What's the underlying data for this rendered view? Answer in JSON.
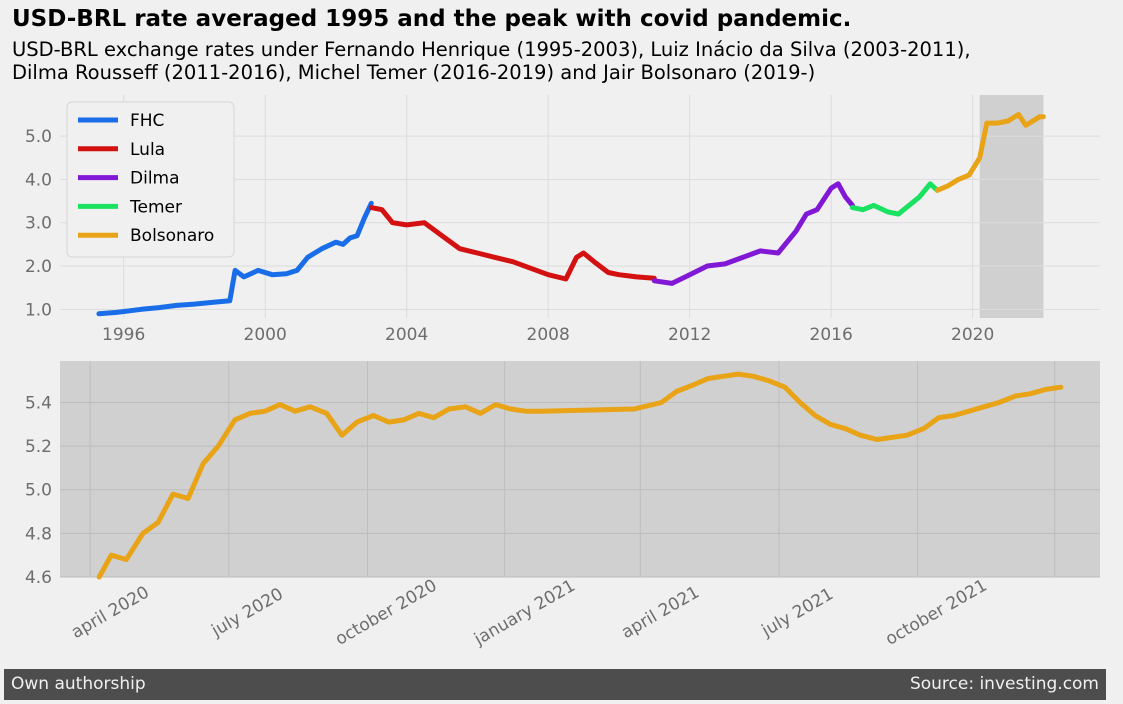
{
  "title": "USD-BRL rate averaged 1995 and the peak with covid pandemic.",
  "subtitle": "USD-BRL exchange rates under Fernando Henrique (1995-2003), Luiz Inácio da Silva (2003-2011),\nDilma Rousseff (2011-2016), Michel Temer (2016-2019) and Jair Bolsonaro (2019-)",
  "footer": {
    "left": "Own authorship",
    "right": "Source: investing.com"
  },
  "colors": {
    "FHC": "#1a6de8",
    "Lula": "#d41111",
    "Dilma": "#8118d6",
    "Temer": "#18e25f",
    "Bolsonaro": "#e8a317",
    "background": "#f0f0f0",
    "covid_band": "#d0d0d0",
    "grid": "#dcdcdc",
    "footer_bg": "#4d4d4d"
  },
  "chart_data": [
    {
      "type": "line",
      "xlabel": "",
      "ylabel": "",
      "x_ticks": [
        "1996",
        "2000",
        "2004",
        "2008",
        "2012",
        "2016",
        "2020"
      ],
      "y_ticks": [
        "1.0",
        "2.0",
        "3.0",
        "4.0",
        "5.0"
      ],
      "xlim": [
        1994.2,
        2023.6
      ],
      "ylim": [
        0.8,
        5.95
      ],
      "grid": true,
      "legend_position": "top-left",
      "shaded_region": {
        "x": [
          2020.2,
          2022.0
        ],
        "label": ""
      },
      "series": [
        {
          "name": "FHC",
          "x": [
            1995.3,
            1995.8,
            1996.5,
            1997.0,
            1997.5,
            1998.0,
            1998.5,
            1999.0,
            1999.15,
            1999.4,
            1999.8,
            2000.2,
            2000.6,
            2000.9,
            2001.2,
            2001.6,
            2002.0,
            2002.2,
            2002.4,
            2002.6,
            2002.8,
            2003.0
          ],
          "y": [
            0.9,
            0.93,
            1.0,
            1.04,
            1.09,
            1.12,
            1.16,
            1.2,
            1.9,
            1.75,
            1.9,
            1.8,
            1.82,
            1.9,
            2.2,
            2.4,
            2.55,
            2.5,
            2.65,
            2.7,
            3.1,
            3.45
          ]
        },
        {
          "name": "Lula",
          "x": [
            2003.0,
            2003.3,
            2003.6,
            2004.0,
            2004.5,
            2005.0,
            2005.5,
            2006.0,
            2006.5,
            2007.0,
            2007.5,
            2008.0,
            2008.5,
            2008.8,
            2009.0,
            2009.3,
            2009.7,
            2010.0,
            2010.5,
            2011.0
          ],
          "y": [
            3.35,
            3.3,
            3.0,
            2.95,
            3.0,
            2.7,
            2.4,
            2.3,
            2.2,
            2.1,
            1.95,
            1.8,
            1.7,
            2.2,
            2.3,
            2.1,
            1.85,
            1.8,
            1.75,
            1.72
          ]
        },
        {
          "name": "Dilma",
          "x": [
            2011.0,
            2011.5,
            2012.0,
            2012.5,
            2013.0,
            2013.5,
            2014.0,
            2014.5,
            2015.0,
            2015.3,
            2015.6,
            2016.0,
            2016.2,
            2016.4,
            2016.6
          ],
          "y": [
            1.66,
            1.6,
            1.8,
            2.0,
            2.05,
            2.2,
            2.35,
            2.3,
            2.8,
            3.2,
            3.3,
            3.8,
            3.9,
            3.6,
            3.4
          ]
        },
        {
          "name": "Temer",
          "x": [
            2016.6,
            2016.9,
            2017.2,
            2017.6,
            2017.9,
            2018.2,
            2018.5,
            2018.8,
            2019.0
          ],
          "y": [
            3.35,
            3.3,
            3.4,
            3.25,
            3.2,
            3.4,
            3.6,
            3.9,
            3.75
          ]
        },
        {
          "name": "Bolsonaro",
          "x": [
            2019.0,
            2019.3,
            2019.6,
            2019.9,
            2020.2,
            2020.4,
            2020.7,
            2021.0,
            2021.3,
            2021.5,
            2021.7,
            2021.9,
            2022.0
          ],
          "y": [
            3.75,
            3.85,
            4.0,
            4.1,
            4.5,
            5.3,
            5.3,
            5.35,
            5.5,
            5.25,
            5.35,
            5.45,
            5.45
          ]
        }
      ]
    },
    {
      "type": "line",
      "xlabel": "",
      "ylabel": "",
      "x_ticks": [
        "april 2020",
        "july 2020",
        "october 2020",
        "january 2021",
        "april 2021",
        "july 2021",
        "october 2021"
      ],
      "y_ticks": [
        "4.6",
        "4.8",
        "5.0",
        "5.2",
        "5.4"
      ],
      "xlim": [
        "2020-02-10",
        "2021-12-31"
      ],
      "ylim": [
        4.6,
        5.59
      ],
      "grid": true,
      "series": [
        {
          "name": "Bolsonaro",
          "x": [
            "2020-03-07",
            "2020-03-15",
            "2020-03-25",
            "2020-04-05",
            "2020-04-15",
            "2020-04-25",
            "2020-05-05",
            "2020-05-15",
            "2020-05-25",
            "2020-06-05",
            "2020-06-15",
            "2020-06-25",
            "2020-07-05",
            "2020-07-15",
            "2020-07-25",
            "2020-08-05",
            "2020-08-15",
            "2020-08-25",
            "2020-09-05",
            "2020-09-15",
            "2020-09-25",
            "2020-10-05",
            "2020-10-15",
            "2020-10-25",
            "2020-11-05",
            "2020-11-15",
            "2020-11-25",
            "2020-12-05",
            "2020-12-15",
            "2020-12-25",
            "2021-02-25",
            "2021-03-15",
            "2021-03-25",
            "2021-04-05",
            "2021-04-15",
            "2021-04-25",
            "2021-05-05",
            "2021-05-15",
            "2021-05-25",
            "2021-06-05",
            "2021-06-15",
            "2021-06-25",
            "2021-07-05",
            "2021-07-15",
            "2021-07-25",
            "2021-08-05",
            "2021-08-15",
            "2021-08-25",
            "2021-09-05",
            "2021-09-15",
            "2021-09-25",
            "2021-10-05",
            "2021-10-15",
            "2021-10-25",
            "2021-11-05",
            "2021-11-15",
            "2021-11-25",
            "2021-12-05"
          ],
          "y": [
            4.6,
            4.7,
            4.68,
            4.8,
            4.85,
            4.98,
            4.96,
            5.12,
            5.2,
            5.32,
            5.35,
            5.36,
            5.39,
            5.36,
            5.38,
            5.35,
            5.25,
            5.31,
            5.34,
            5.31,
            5.32,
            5.35,
            5.33,
            5.37,
            5.38,
            5.35,
            5.39,
            5.37,
            5.36,
            5.36,
            5.37,
            5.4,
            5.45,
            5.48,
            5.51,
            5.52,
            5.53,
            5.52,
            5.5,
            5.47,
            5.4,
            5.34,
            5.3,
            5.28,
            5.25,
            5.23,
            5.24,
            5.25,
            5.28,
            5.33,
            5.34,
            5.36,
            5.38,
            5.4,
            5.43,
            5.44,
            5.46,
            5.47
          ]
        }
      ]
    }
  ]
}
